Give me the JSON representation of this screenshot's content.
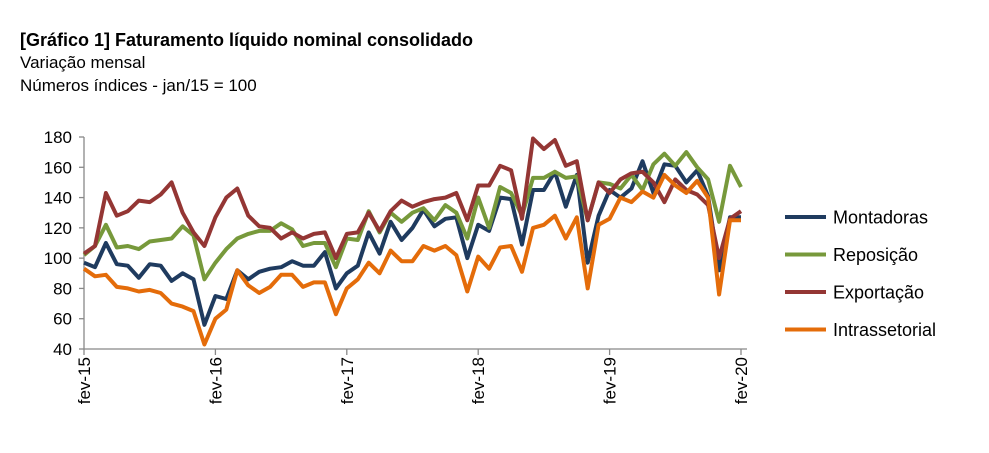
{
  "chart_data": {
    "type": "line",
    "title": "[Gráfico 1] Faturamento líquido nominal consolidado",
    "subtitle": [
      "Variação mensal",
      "Números índices - jan/15 = 100"
    ],
    "xlabel": "",
    "ylabel": "",
    "ylim": [
      40,
      180
    ],
    "yticks": [
      180,
      160,
      140,
      120,
      100,
      80,
      60,
      40
    ],
    "xtick_labels": [
      "fev-15",
      "fev-16",
      "fev-17",
      "fev-18",
      "fev-19",
      "fev-20"
    ],
    "x_period": "monthly, fev-15 to fev-20",
    "grid": false,
    "legend_position": "right",
    "series": [
      {
        "name": "Montadoras",
        "color": "#1f3b5f",
        "values": [
          97,
          94,
          110,
          96,
          95,
          87,
          96,
          95,
          85,
          90,
          86,
          56,
          75,
          73,
          92,
          86,
          91,
          93,
          94,
          98,
          95,
          95,
          104,
          80,
          90,
          95,
          117,
          103,
          124,
          112,
          120,
          132,
          121,
          126,
          127,
          100,
          122,
          118,
          140,
          139,
          109,
          145,
          145,
          157,
          134,
          155,
          97,
          128,
          145,
          140,
          146,
          164,
          143,
          162,
          161,
          150,
          158,
          141,
          92,
          127,
          127
        ]
      },
      {
        "name": "Reposição",
        "color": "#77993b",
        "values": [
          102,
          108,
          122,
          107,
          108,
          106,
          111,
          112,
          113,
          121,
          115,
          86,
          97,
          106,
          113,
          116,
          118,
          118,
          123,
          119,
          108,
          110,
          110,
          94,
          113,
          112,
          131,
          117,
          130,
          124,
          130,
          133,
          125,
          135,
          130,
          113,
          140,
          120,
          147,
          143,
          128,
          153,
          153,
          157,
          153,
          154,
          125,
          150,
          149,
          146,
          155,
          145,
          162,
          169,
          161,
          170,
          160,
          152,
          124,
          161,
          147
        ]
      },
      {
        "name": "Exportação",
        "color": "#943634",
        "values": [
          103,
          108,
          143,
          128,
          131,
          138,
          137,
          142,
          150,
          130,
          117,
          108,
          127,
          140,
          146,
          128,
          121,
          120,
          113,
          117,
          113,
          116,
          117,
          100,
          116,
          117,
          130,
          118,
          131,
          138,
          134,
          137,
          139,
          140,
          143,
          125,
          148,
          148,
          161,
          158,
          126,
          179,
          172,
          178,
          161,
          164,
          125,
          150,
          143,
          152,
          156,
          157,
          150,
          137,
          152,
          145,
          142,
          135,
          100,
          126,
          131
        ]
      },
      {
        "name": "Intrassetorial",
        "color": "#e46c0a",
        "values": [
          93,
          88,
          89,
          81,
          80,
          78,
          79,
          77,
          70,
          68,
          65,
          43,
          60,
          66,
          92,
          82,
          77,
          81,
          89,
          89,
          81,
          84,
          84,
          63,
          80,
          86,
          97,
          90,
          105,
          98,
          98,
          108,
          105,
          108,
          102,
          78,
          101,
          93,
          107,
          108,
          91,
          120,
          122,
          128,
          113,
          127,
          80,
          122,
          126,
          140,
          137,
          144,
          140,
          155,
          148,
          143,
          151,
          140,
          76,
          125,
          125
        ]
      }
    ]
  }
}
